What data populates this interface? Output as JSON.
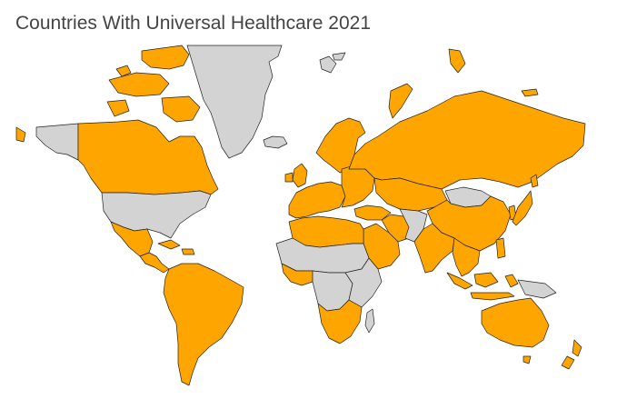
{
  "title": "Countries With Universal Healthcare 2021",
  "colors": {
    "universal": "#FFA500",
    "not_universal": "#D3D3D3",
    "border": "#222222",
    "background": "#FFFFFF"
  },
  "regions": [
    {
      "name": "canada",
      "status": "universal"
    },
    {
      "name": "canadian-arctic-islands",
      "status": "universal"
    },
    {
      "name": "alaska",
      "status": "not_universal"
    },
    {
      "name": "united-states",
      "status": "not_universal"
    },
    {
      "name": "mexico",
      "status": "universal"
    },
    {
      "name": "central-america",
      "status": "universal"
    },
    {
      "name": "caribbean",
      "status": "universal"
    },
    {
      "name": "greenland",
      "status": "not_universal"
    },
    {
      "name": "iceland",
      "status": "not_universal"
    },
    {
      "name": "svalbard",
      "status": "not_universal"
    },
    {
      "name": "south-america",
      "status": "universal"
    },
    {
      "name": "scandinavia",
      "status": "universal"
    },
    {
      "name": "united-kingdom",
      "status": "universal"
    },
    {
      "name": "ireland",
      "status": "universal"
    },
    {
      "name": "western-europe",
      "status": "universal"
    },
    {
      "name": "eastern-europe",
      "status": "universal"
    },
    {
      "name": "russia",
      "status": "universal"
    },
    {
      "name": "novaya-zemlya",
      "status": "universal"
    },
    {
      "name": "central-asia",
      "status": "universal"
    },
    {
      "name": "mongolia",
      "status": "not_universal"
    },
    {
      "name": "china",
      "status": "universal"
    },
    {
      "name": "japan",
      "status": "universal"
    },
    {
      "name": "south-korea",
      "status": "universal"
    },
    {
      "name": "india",
      "status": "universal"
    },
    {
      "name": "pakistan-afghanistan",
      "status": "not_universal"
    },
    {
      "name": "iran",
      "status": "universal"
    },
    {
      "name": "turkey",
      "status": "universal"
    },
    {
      "name": "arabian-peninsula",
      "status": "universal"
    },
    {
      "name": "southeast-asia",
      "status": "universal"
    },
    {
      "name": "indonesia-philippines",
      "status": "universal"
    },
    {
      "name": "papua-new-guinea",
      "status": "not_universal"
    },
    {
      "name": "australia",
      "status": "universal"
    },
    {
      "name": "new-zealand",
      "status": "universal"
    },
    {
      "name": "north-africa",
      "status": "universal"
    },
    {
      "name": "sahel-africa",
      "status": "not_universal"
    },
    {
      "name": "west-africa",
      "status": "universal"
    },
    {
      "name": "central-africa",
      "status": "not_universal"
    },
    {
      "name": "east-africa",
      "status": "not_universal"
    },
    {
      "name": "southern-africa",
      "status": "universal"
    },
    {
      "name": "madagascar",
      "status": "not_universal"
    }
  ]
}
